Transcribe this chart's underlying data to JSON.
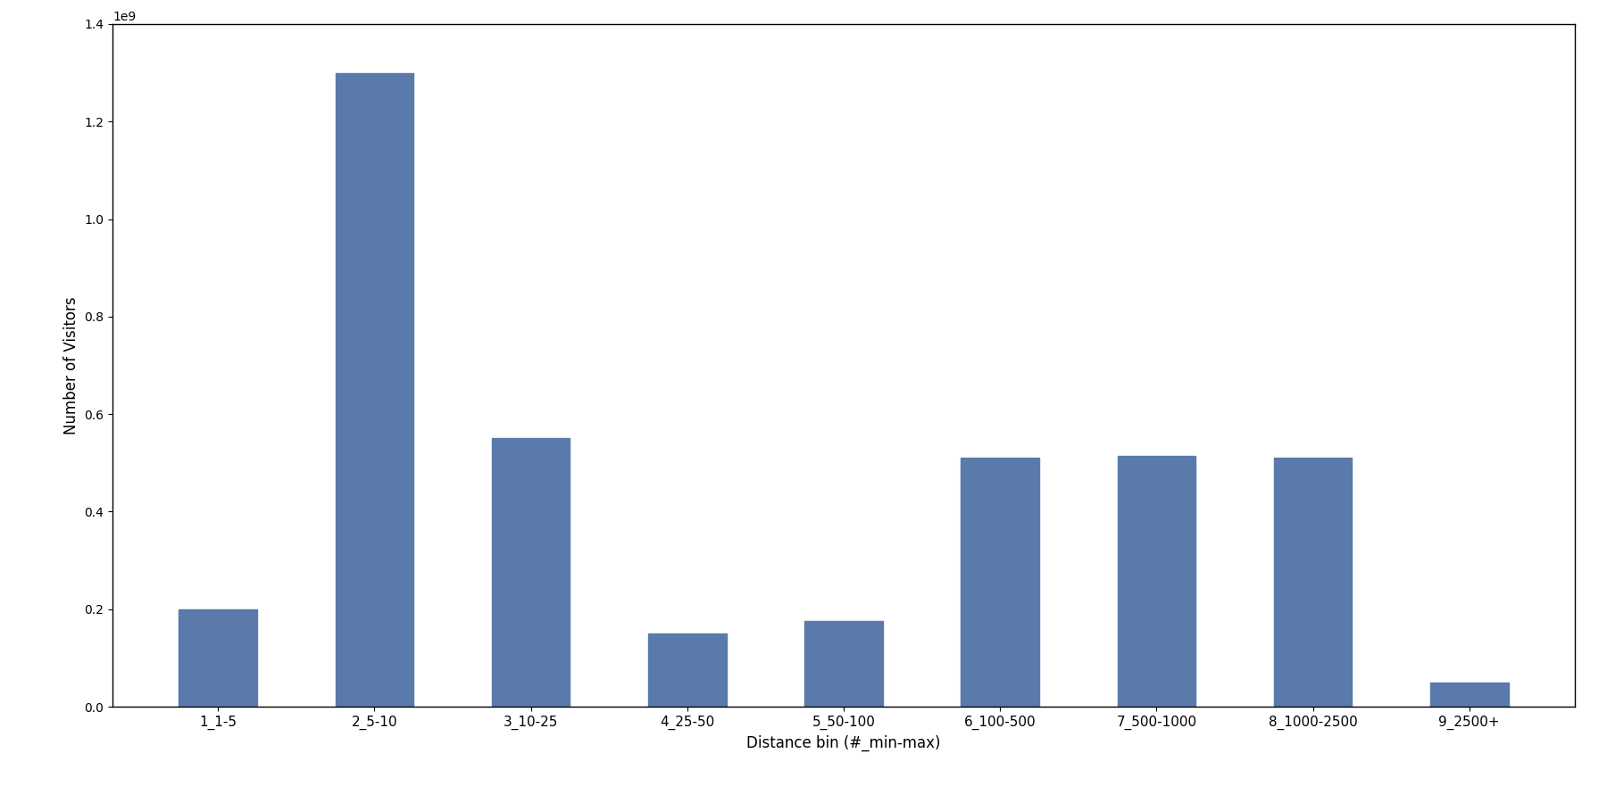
{
  "categories": [
    "1_1-5",
    "2_5-10",
    "3_10-25",
    "4_25-50",
    "5_50-100",
    "6_100-500",
    "7_500-1000",
    "8_1000-2500",
    "9_2500+"
  ],
  "values": [
    200000000.0,
    1300000000.0,
    550000000.0,
    150000000.0,
    175000000.0,
    510000000.0,
    515000000.0,
    510000000.0,
    50000000.0
  ],
  "bar_color": "#5a7aab",
  "xlabel": "Distance bin (#_min-max)",
  "ylabel": "Number of Visitors",
  "ylim": [
    0,
    1400000000.0
  ],
  "background_color": "#ffffff",
  "figsize": [
    18.0,
    9.0
  ],
  "dpi": 100,
  "bar_width": 0.5,
  "tick_fontsize": 11,
  "label_fontsize": 12
}
